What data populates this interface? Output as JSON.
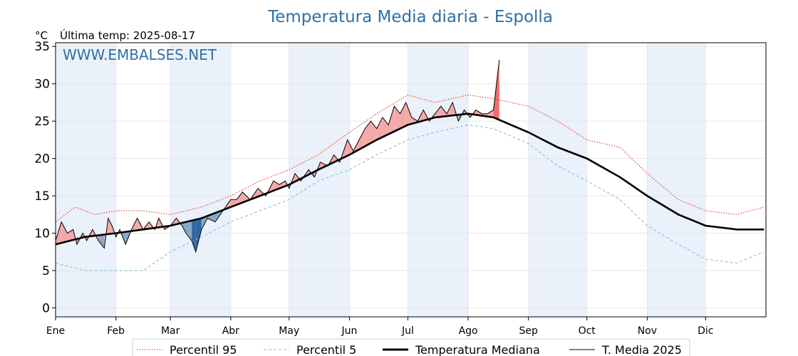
{
  "chart_data": {
    "type": "line",
    "title": "Temperatura Media diaria - Espolla",
    "unit_label": "°C",
    "last_temp_label": "Última temp: 2025-08-17",
    "watermark": "WWW.EMBALSES.NET",
    "xlabel": "",
    "ylabel": "",
    "ylim": [
      -1.2,
      35.5
    ],
    "yticks": [
      0,
      5,
      10,
      15,
      20,
      25,
      30,
      35
    ],
    "months": [
      "Ene",
      "Feb",
      "Mar",
      "Abr",
      "May",
      "Jun",
      "Jul",
      "Ago",
      "Sep",
      "Oct",
      "Nov",
      "Dic"
    ],
    "month_start_day": [
      0,
      31,
      59,
      90,
      120,
      151,
      181,
      212,
      243,
      273,
      304,
      334
    ],
    "days_in_year": 365,
    "grid": true,
    "legend_position": "bottom",
    "colors": {
      "p95": "#e8201a",
      "p5": "#7fbcd6",
      "median": "#000000",
      "current": "#000000",
      "above_fill": "#f4a9a9",
      "above_fill_strong": "#ee6d6d",
      "below_fill": "#88aac8",
      "below_fill_strong": "#2f68a0",
      "shade_band": "#eaf1fa",
      "title": "#2e6fa6"
    },
    "series": [
      {
        "name": "Percentil 95",
        "style": "dotted",
        "points": [
          [
            0,
            11.5
          ],
          [
            10,
            13.5
          ],
          [
            20,
            12.5
          ],
          [
            31,
            13.0
          ],
          [
            45,
            13.0
          ],
          [
            59,
            12.5
          ],
          [
            75,
            13.5
          ],
          [
            90,
            15.0
          ],
          [
            105,
            17.0
          ],
          [
            120,
            18.5
          ],
          [
            135,
            20.5
          ],
          [
            151,
            23.5
          ],
          [
            165,
            26.0
          ],
          [
            181,
            28.5
          ],
          [
            195,
            27.5
          ],
          [
            212,
            28.5
          ],
          [
            225,
            28.0
          ],
          [
            243,
            27.0
          ],
          [
            258,
            25.0
          ],
          [
            273,
            22.5
          ],
          [
            290,
            21.5
          ],
          [
            304,
            18.0
          ],
          [
            320,
            14.5
          ],
          [
            334,
            13.0
          ],
          [
            350,
            12.5
          ],
          [
            364,
            13.5
          ]
        ]
      },
      {
        "name": "Percentil 5",
        "style": "dashed",
        "points": [
          [
            0,
            6.0
          ],
          [
            15,
            5.0
          ],
          [
            31,
            5.0
          ],
          [
            45,
            5.0
          ],
          [
            59,
            7.5
          ],
          [
            75,
            9.5
          ],
          [
            90,
            11.5
          ],
          [
            105,
            13.0
          ],
          [
            120,
            14.5
          ],
          [
            135,
            17.0
          ],
          [
            151,
            18.5
          ],
          [
            165,
            20.5
          ],
          [
            181,
            22.5
          ],
          [
            195,
            23.5
          ],
          [
            212,
            24.5
          ],
          [
            225,
            24.0
          ],
          [
            243,
            22.0
          ],
          [
            258,
            19.0
          ],
          [
            273,
            17.0
          ],
          [
            290,
            14.5
          ],
          [
            304,
            11.0
          ],
          [
            320,
            8.5
          ],
          [
            334,
            6.5
          ],
          [
            350,
            6.0
          ],
          [
            364,
            7.5
          ]
        ]
      },
      {
        "name": "Temperatura Mediana",
        "style": "thick",
        "points": [
          [
            0,
            8.5
          ],
          [
            15,
            9.5
          ],
          [
            31,
            10.0
          ],
          [
            45,
            10.5
          ],
          [
            59,
            11.0
          ],
          [
            75,
            12.0
          ],
          [
            90,
            13.5
          ],
          [
            105,
            15.0
          ],
          [
            120,
            16.5
          ],
          [
            135,
            18.5
          ],
          [
            151,
            20.5
          ],
          [
            165,
            22.5
          ],
          [
            181,
            24.5
          ],
          [
            195,
            25.5
          ],
          [
            212,
            26.0
          ],
          [
            225,
            25.5
          ],
          [
            243,
            23.5
          ],
          [
            258,
            21.5
          ],
          [
            273,
            20.0
          ],
          [
            290,
            17.5
          ],
          [
            304,
            15.0
          ],
          [
            320,
            12.5
          ],
          [
            334,
            11.0
          ],
          [
            350,
            10.5
          ],
          [
            364,
            10.5
          ]
        ]
      },
      {
        "name": "T. Media 2025",
        "style": "thin",
        "points": [
          [
            0,
            9.0
          ],
          [
            3,
            11.5
          ],
          [
            6,
            10.0
          ],
          [
            9,
            10.5
          ],
          [
            11,
            8.5
          ],
          [
            14,
            10.0
          ],
          [
            16,
            9.0
          ],
          [
            19,
            10.5
          ],
          [
            22,
            9.0
          ],
          [
            25,
            8.0
          ],
          [
            27,
            12.0
          ],
          [
            29,
            11.0
          ],
          [
            31,
            9.5
          ],
          [
            33,
            10.5
          ],
          [
            36,
            8.5
          ],
          [
            39,
            10.5
          ],
          [
            42,
            12.0
          ],
          [
            45,
            10.5
          ],
          [
            48,
            11.5
          ],
          [
            51,
            10.5
          ],
          [
            53,
            12.0
          ],
          [
            56,
            10.5
          ],
          [
            59,
            11.0
          ],
          [
            62,
            12.0
          ],
          [
            65,
            11.0
          ],
          [
            67,
            10.0
          ],
          [
            70,
            9.0
          ],
          [
            72,
            7.5
          ],
          [
            75,
            10.5
          ],
          [
            78,
            12.0
          ],
          [
            82,
            11.5
          ],
          [
            86,
            13.0
          ],
          [
            90,
            14.5
          ],
          [
            93,
            14.5
          ],
          [
            96,
            15.5
          ],
          [
            100,
            14.5
          ],
          [
            104,
            16.0
          ],
          [
            108,
            15.0
          ],
          [
            112,
            17.0
          ],
          [
            115,
            16.5
          ],
          [
            118,
            17.0
          ],
          [
            120,
            16.0
          ],
          [
            123,
            18.0
          ],
          [
            126,
            17.0
          ],
          [
            130,
            18.5
          ],
          [
            133,
            17.5
          ],
          [
            136,
            19.5
          ],
          [
            140,
            19.0
          ],
          [
            143,
            20.5
          ],
          [
            146,
            19.5
          ],
          [
            148,
            21.0
          ],
          [
            150,
            22.5
          ],
          [
            153,
            21.0
          ],
          [
            156,
            22.5
          ],
          [
            159,
            24.0
          ],
          [
            162,
            25.0
          ],
          [
            165,
            24.0
          ],
          [
            168,
            25.5
          ],
          [
            171,
            24.5
          ],
          [
            174,
            27.0
          ],
          [
            177,
            26.0
          ],
          [
            180,
            27.5
          ],
          [
            183,
            25.5
          ],
          [
            186,
            25.0
          ],
          [
            189,
            26.5
          ],
          [
            192,
            25.0
          ],
          [
            195,
            26.0
          ],
          [
            198,
            27.0
          ],
          [
            201,
            26.0
          ],
          [
            204,
            27.5
          ],
          [
            207,
            25.0
          ],
          [
            210,
            26.5
          ],
          [
            213,
            25.5
          ],
          [
            216,
            26.5
          ],
          [
            219,
            26.0
          ],
          [
            222,
            26.0
          ],
          [
            225,
            26.5
          ],
          [
            228,
            33.2
          ]
        ]
      }
    ]
  },
  "legend": {
    "items": [
      "Percentil 95",
      "Percentil 5",
      "Temperatura Mediana",
      "T. Media 2025"
    ]
  }
}
